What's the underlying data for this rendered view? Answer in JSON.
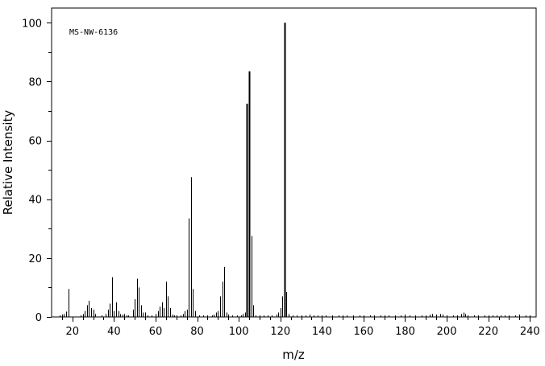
{
  "chart_data": {
    "type": "bar",
    "subtype": "mass-spectrum",
    "annotation": "MS-NW-6136",
    "xlabel": "m/z",
    "ylabel": "Relative Intensity",
    "xlim": [
      10,
      243
    ],
    "ylim": [
      0,
      105
    ],
    "x_ticks": [
      20,
      40,
      60,
      80,
      100,
      120,
      140,
      160,
      180,
      200,
      220,
      240
    ],
    "x_tick_labels": [
      "20",
      "40",
      "60",
      "80",
      "100",
      "120",
      "140",
      "160",
      "180",
      "200",
      "220",
      "240"
    ],
    "y_ticks": [
      0,
      20,
      40,
      60,
      80,
      100
    ],
    "y_tick_labels": [
      "0",
      "20",
      "40",
      "60",
      "80",
      "100"
    ],
    "grid": false,
    "peaks": [
      [
        14,
        0.5
      ],
      [
        15,
        0.8
      ],
      [
        16,
        1.0
      ],
      [
        17,
        1.8
      ],
      [
        18,
        9.5
      ],
      [
        24,
        0.5
      ],
      [
        25,
        1.0
      ],
      [
        26,
        2.0
      ],
      [
        27,
        4.0
      ],
      [
        28,
        5.5
      ],
      [
        29,
        3.0
      ],
      [
        30,
        2.5
      ],
      [
        31,
        1.0
      ],
      [
        34,
        0.5
      ],
      [
        36,
        1.0
      ],
      [
        37,
        2.5
      ],
      [
        38,
        4.5
      ],
      [
        39,
        13.5
      ],
      [
        40,
        2.0
      ],
      [
        41,
        5.0
      ],
      [
        42,
        2.0
      ],
      [
        43,
        1.0
      ],
      [
        44,
        0.8
      ],
      [
        45,
        1.0
      ],
      [
        46,
        0.5
      ],
      [
        47,
        0.5
      ],
      [
        49,
        2.5
      ],
      [
        50,
        6.0
      ],
      [
        51,
        13.0
      ],
      [
        52,
        10.0
      ],
      [
        53,
        4.0
      ],
      [
        54,
        1.5
      ],
      [
        55,
        1.5
      ],
      [
        56,
        0.5
      ],
      [
        58,
        0.5
      ],
      [
        60,
        1.0
      ],
      [
        61,
        2.0
      ],
      [
        62,
        3.5
      ],
      [
        63,
        5.0
      ],
      [
        64,
        3.0
      ],
      [
        65,
        12.0
      ],
      [
        66,
        7.0
      ],
      [
        67,
        3.0
      ],
      [
        68,
        0.8
      ],
      [
        69,
        0.5
      ],
      [
        70,
        0.5
      ],
      [
        72,
        0.5
      ],
      [
        73,
        1.0
      ],
      [
        74,
        2.0
      ],
      [
        75,
        2.5
      ],
      [
        76,
        33.5
      ],
      [
        77,
        47.5
      ],
      [
        78,
        9.5
      ],
      [
        79,
        2.0
      ],
      [
        81,
        0.5
      ],
      [
        83,
        0.5
      ],
      [
        85,
        0.5
      ],
      [
        87,
        0.5
      ],
      [
        88,
        0.8
      ],
      [
        89,
        1.5
      ],
      [
        90,
        2.0
      ],
      [
        91,
        7.0
      ],
      [
        92,
        12.0
      ],
      [
        93,
        17.0
      ],
      [
        94,
        1.5
      ],
      [
        95,
        0.8
      ],
      [
        97,
        0.5
      ],
      [
        99,
        0.5
      ],
      [
        101,
        0.5
      ],
      [
        102,
        1.0
      ],
      [
        103,
        1.5
      ],
      [
        104,
        72.5
      ],
      [
        105,
        83.5
      ],
      [
        106,
        27.5
      ],
      [
        107,
        4.0
      ],
      [
        108,
        0.5
      ],
      [
        110,
        0.5
      ],
      [
        112,
        0.5
      ],
      [
        114,
        0.5
      ],
      [
        116,
        0.5
      ],
      [
        118,
        0.8
      ],
      [
        119,
        1.5
      ],
      [
        120,
        3.0
      ],
      [
        121,
        7.0
      ],
      [
        122,
        100.0
      ],
      [
        123,
        8.5
      ],
      [
        124,
        1.0
      ],
      [
        126,
        0.5
      ],
      [
        128,
        0.5
      ],
      [
        130,
        0.5
      ],
      [
        132,
        0.5
      ],
      [
        134,
        0.8
      ],
      [
        136,
        0.5
      ],
      [
        138,
        0.5
      ],
      [
        140,
        0.5
      ],
      [
        142,
        0.5
      ],
      [
        145,
        0.5
      ],
      [
        148,
        0.5
      ],
      [
        150,
        0.5
      ],
      [
        152,
        0.5
      ],
      [
        155,
        0.5
      ],
      [
        158,
        0.5
      ],
      [
        160,
        0.5
      ],
      [
        163,
        0.5
      ],
      [
        165,
        0.5
      ],
      [
        168,
        0.5
      ],
      [
        170,
        0.5
      ],
      [
        172,
        0.5
      ],
      [
        175,
        0.5
      ],
      [
        178,
        0.5
      ],
      [
        180,
        0.8
      ],
      [
        182,
        0.5
      ],
      [
        185,
        0.5
      ],
      [
        188,
        0.5
      ],
      [
        190,
        0.5
      ],
      [
        192,
        0.8
      ],
      [
        193,
        1.0
      ],
      [
        195,
        0.8
      ],
      [
        197,
        1.0
      ],
      [
        198,
        0.8
      ],
      [
        200,
        0.5
      ],
      [
        203,
        0.5
      ],
      [
        205,
        0.5
      ],
      [
        207,
        1.0
      ],
      [
        208,
        1.5
      ],
      [
        209,
        1.0
      ],
      [
        210,
        0.5
      ],
      [
        213,
        0.5
      ],
      [
        215,
        0.5
      ],
      [
        218,
        0.5
      ],
      [
        220,
        0.5
      ],
      [
        222,
        0.5
      ],
      [
        224,
        0.5
      ],
      [
        226,
        0.5
      ],
      [
        228,
        0.5
      ],
      [
        230,
        0.5
      ],
      [
        233,
        0.5
      ],
      [
        235,
        0.8
      ],
      [
        238,
        0.5
      ],
      [
        240,
        0.5
      ]
    ]
  }
}
